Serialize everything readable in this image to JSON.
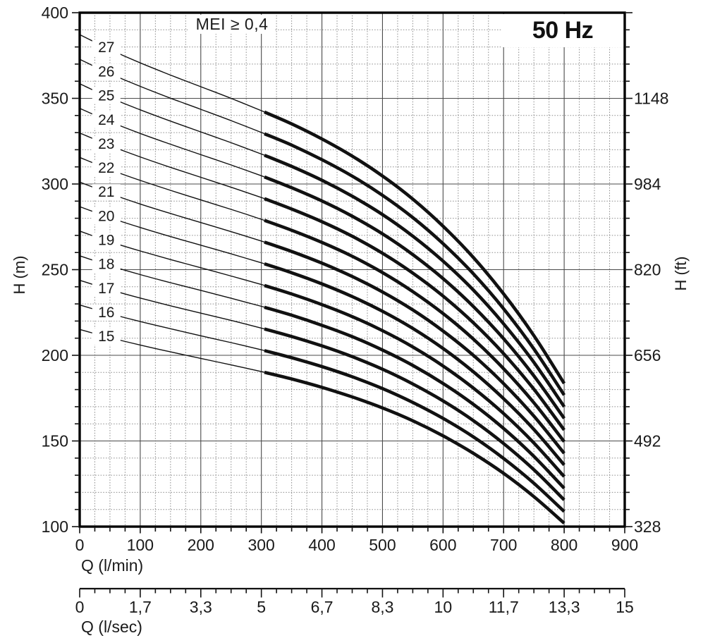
{
  "chart": {
    "title": "50 Hz",
    "annotation": "MEI ≥ 0,4",
    "x_axis": {
      "label": "Q (l/min)",
      "min": 0,
      "max": 900,
      "major_tick_step": 100,
      "minor_tick_step": 25,
      "ticks": [
        {
          "q": 0,
          "label": "0"
        },
        {
          "q": 100,
          "label": "100"
        },
        {
          "q": 200,
          "label": "200"
        },
        {
          "q": 300,
          "label": "300"
        },
        {
          "q": 400,
          "label": "400"
        },
        {
          "q": 500,
          "label": "500"
        },
        {
          "q": 600,
          "label": "600"
        },
        {
          "q": 700,
          "label": "700"
        },
        {
          "q": 800,
          "label": "800"
        },
        {
          "q": 900,
          "label": "900"
        }
      ]
    },
    "y_axis_left": {
      "label": "H (m)",
      "min": 100,
      "max": 400,
      "major_tick_step": 50,
      "minor_tick_step": 10,
      "ticks": [
        {
          "m": 100,
          "label": "100"
        },
        {
          "m": 150,
          "label": "150"
        },
        {
          "m": 200,
          "label": "200"
        },
        {
          "m": 250,
          "label": "250"
        },
        {
          "m": 300,
          "label": "300"
        },
        {
          "m": 350,
          "label": "350"
        },
        {
          "m": 400,
          "label": "400"
        }
      ]
    },
    "y_axis_right": {
      "label": "H (ft)",
      "ticks": [
        {
          "m": 100,
          "label": "328"
        },
        {
          "m": 150,
          "label": "492"
        },
        {
          "m": 200,
          "label": "656"
        },
        {
          "m": 250,
          "label": "820"
        },
        {
          "m": 300,
          "label": "984"
        },
        {
          "m": 350,
          "label": "1148"
        }
      ]
    },
    "x_axis_secondary": {
      "label": "Q (l/sec)",
      "min": 0,
      "max": 15,
      "ticks": [
        {
          "lmin": 0,
          "label": "0"
        },
        {
          "lmin": 100,
          "label": "1,7"
        },
        {
          "lmin": 200,
          "label": "3,3"
        },
        {
          "lmin": 300,
          "label": "5"
        },
        {
          "lmin": 400,
          "label": "6,7"
        },
        {
          "lmin": 500,
          "label": "8,3"
        },
        {
          "lmin": 600,
          "label": "10"
        },
        {
          "lmin": 700,
          "label": "11,7"
        },
        {
          "lmin": 800,
          "label": "13,3"
        },
        {
          "lmin": 900,
          "label": "15"
        }
      ]
    },
    "colors": {
      "curve": "#111111",
      "grid_major": "#4a4a4a",
      "grid_minor": "#8a8a8a",
      "frame": "#000000",
      "text": "#1a1a1a"
    }
  },
  "chart_data": {
    "type": "line",
    "title": "50 Hz",
    "xlabel": "Q (l/min)",
    "ylabel": "H (m)",
    "xlim": [
      0,
      900
    ],
    "ylim": [
      100,
      400
    ],
    "grid": true,
    "x_lmin": [
      0,
      50,
      100,
      150,
      200,
      250,
      300,
      350,
      400,
      450,
      500,
      550,
      600,
      650,
      700,
      750,
      800
    ],
    "thick_from_lmin": 305,
    "label_at_lmin": 44,
    "series": [
      {
        "stage": "27",
        "heads_m": [
          387.2,
          378.5,
          370.7,
          363.6,
          356.8,
          350.0,
          342.8,
          335.1,
          326.3,
          316.3,
          304.7,
          291.2,
          275.4,
          257.1,
          235.9,
          211.5,
          183.6
        ]
      },
      {
        "stage": "26",
        "heads_m": [
          372.8,
          364.4,
          357.0,
          350.1,
          343.6,
          337.0,
          330.1,
          322.7,
          314.2,
          304.6,
          293.4,
          280.4,
          265.2,
          247.6,
          227.2,
          203.7,
          176.8
        ]
      },
      {
        "stage": "25",
        "heads_m": [
          358.5,
          350.4,
          343.3,
          336.7,
          330.4,
          324.1,
          317.5,
          310.3,
          302.2,
          292.9,
          282.2,
          269.6,
          255.0,
          238.1,
          218.4,
          195.9,
          170.0
        ]
      },
      {
        "stage": "24",
        "heads_m": [
          344.2,
          336.4,
          329.5,
          323.2,
          317.1,
          311.1,
          304.8,
          297.8,
          290.1,
          281.2,
          270.9,
          258.8,
          244.8,
          228.5,
          209.7,
          188.0,
          163.2
        ]
      },
      {
        "stage": "23",
        "heads_m": [
          329.8,
          322.4,
          315.8,
          309.7,
          303.9,
          298.1,
          292.1,
          285.4,
          278.0,
          269.5,
          259.6,
          248.0,
          234.6,
          219.0,
          201.0,
          180.2,
          156.4
        ]
      },
      {
        "stage": "22",
        "heads_m": [
          315.5,
          308.4,
          302.1,
          296.3,
          290.7,
          285.2,
          279.4,
          273.0,
          265.9,
          257.8,
          248.3,
          237.2,
          224.4,
          209.5,
          192.2,
          172.3,
          149.6
        ]
      },
      {
        "stage": "21",
        "heads_m": [
          301.1,
          294.4,
          288.3,
          282.8,
          277.5,
          272.2,
          266.7,
          260.6,
          253.8,
          246.0,
          237.0,
          226.5,
          214.2,
          200.0,
          183.5,
          164.5,
          142.8
        ]
      },
      {
        "stage": "20",
        "heads_m": [
          286.8,
          280.3,
          274.6,
          269.3,
          264.3,
          259.2,
          254.0,
          248.2,
          241.7,
          234.3,
          225.7,
          215.7,
          204.0,
          190.4,
          174.7,
          156.7,
          136.0
        ]
      },
      {
        "stage": "19",
        "heads_m": [
          272.5,
          266.3,
          260.9,
          255.9,
          251.1,
          246.3,
          241.3,
          235.8,
          229.6,
          222.6,
          214.4,
          204.9,
          193.8,
          180.9,
          166.0,
          148.8,
          129.2
        ]
      },
      {
        "stage": "18",
        "heads_m": [
          258.1,
          252.3,
          247.1,
          242.4,
          237.9,
          233.3,
          228.6,
          223.4,
          217.5,
          210.9,
          203.1,
          194.1,
          183.6,
          171.4,
          157.3,
          141.0,
          122.4
        ]
      },
      {
        "stage": "17",
        "heads_m": [
          243.8,
          238.3,
          233.4,
          228.9,
          224.6,
          220.4,
          215.9,
          211.0,
          205.5,
          199.2,
          191.9,
          183.3,
          173.4,
          161.9,
          148.5,
          133.2,
          115.6
        ]
      },
      {
        "stage": "16",
        "heads_m": [
          229.4,
          224.3,
          219.7,
          215.5,
          211.4,
          207.4,
          203.2,
          198.6,
          193.4,
          187.5,
          180.6,
          172.5,
          163.2,
          152.4,
          139.8,
          125.3,
          108.8
        ]
      },
      {
        "stage": "15",
        "heads_m": [
          215.1,
          210.3,
          206.0,
          202.0,
          198.2,
          194.4,
          190.5,
          186.2,
          181.3,
          175.7,
          169.3,
          161.8,
          153.0,
          142.8,
          131.1,
          117.5,
          102.0
        ]
      }
    ]
  }
}
